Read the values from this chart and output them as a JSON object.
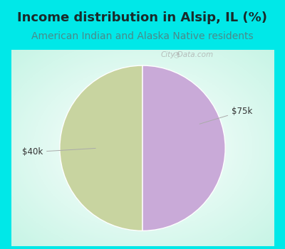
{
  "title": "Income distribution in Alsip, IL (%)",
  "subtitle": "American Indian and Alaska Native residents",
  "slices": [
    50.0,
    50.0
  ],
  "labels": [
    "$40k",
    "$75k"
  ],
  "colors": [
    "#c8d4a0",
    "#c9aad8"
  ],
  "background_color": "#00e8e8",
  "title_color": "#1a2a2a",
  "subtitle_color": "#4a8a8a",
  "label_color": "#333333",
  "watermark": "City-Data.com",
  "startangle": 90,
  "label_fontsize": 8.5,
  "title_fontsize": 13,
  "subtitle_fontsize": 10
}
